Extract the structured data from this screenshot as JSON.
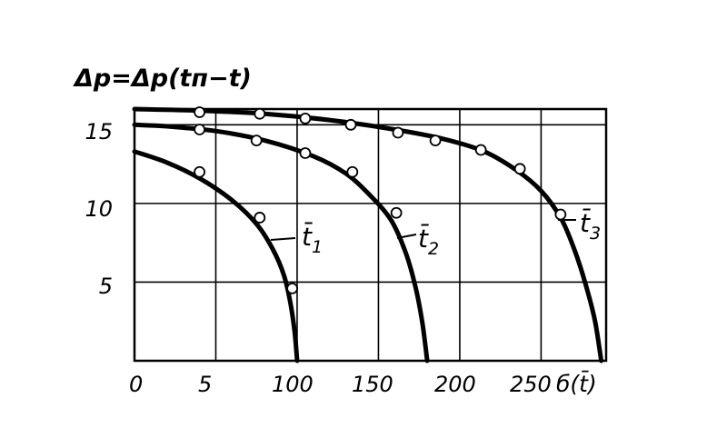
{
  "chart_data": {
    "type": "line",
    "ylabel": "Δp=Δp(tп−t)",
    "xlabel": "б(t̄)",
    "xlim": [
      0,
      290
    ],
    "ylim": [
      0,
      16
    ],
    "x_ticks": [
      "0",
      "5",
      "100",
      "150",
      "200",
      "250"
    ],
    "y_ticks": [
      "5",
      "10",
      "15"
    ],
    "grid": true,
    "legend": "none",
    "series": [
      {
        "label": "t̄",
        "sub": "1",
        "curve": [
          [
            0,
            13.3
          ],
          [
            20,
            12.6
          ],
          [
            40,
            11.6
          ],
          [
            60,
            10.2
          ],
          [
            75,
            8.7
          ],
          [
            85,
            7.1
          ],
          [
            92,
            5.4
          ],
          [
            96,
            3.6
          ],
          [
            98.5,
            1.8
          ],
          [
            100,
            0
          ]
        ],
        "markers": [
          [
            40,
            12.0
          ],
          [
            77,
            9.1
          ],
          [
            97,
            4.6
          ]
        ]
      },
      {
        "label": "t̄",
        "sub": "2",
        "curve": [
          [
            0,
            15.0
          ],
          [
            20,
            14.9
          ],
          [
            50,
            14.6
          ],
          [
            80,
            14.0
          ],
          [
            110,
            13.0
          ],
          [
            130,
            11.9
          ],
          [
            145,
            10.5
          ],
          [
            158,
            8.9
          ],
          [
            167,
            6.8
          ],
          [
            173,
            4.6
          ],
          [
            177,
            2.4
          ],
          [
            180,
            0
          ]
        ],
        "markers": [
          [
            40,
            14.7
          ],
          [
            75,
            14.0
          ],
          [
            105,
            13.2
          ],
          [
            134,
            12.0
          ],
          [
            161,
            9.4
          ]
        ]
      },
      {
        "label": "t̄",
        "sub": "3",
        "curve": [
          [
            0,
            16.0
          ],
          [
            40,
            15.9
          ],
          [
            80,
            15.7
          ],
          [
            120,
            15.3
          ],
          [
            160,
            14.7
          ],
          [
            190,
            14.1
          ],
          [
            215,
            13.3
          ],
          [
            235,
            12.1
          ],
          [
            250,
            10.8
          ],
          [
            262,
            9.1
          ],
          [
            270,
            7.2
          ],
          [
            277,
            5.0
          ],
          [
            283,
            2.6
          ],
          [
            287,
            0
          ]
        ],
        "markers": [
          [
            40,
            15.8
          ],
          [
            77,
            15.7
          ],
          [
            105,
            15.4
          ],
          [
            133,
            15.0
          ],
          [
            162,
            14.5
          ],
          [
            185,
            14.0
          ],
          [
            213,
            13.4
          ],
          [
            237,
            12.2
          ],
          [
            262,
            9.3
          ]
        ]
      }
    ]
  }
}
